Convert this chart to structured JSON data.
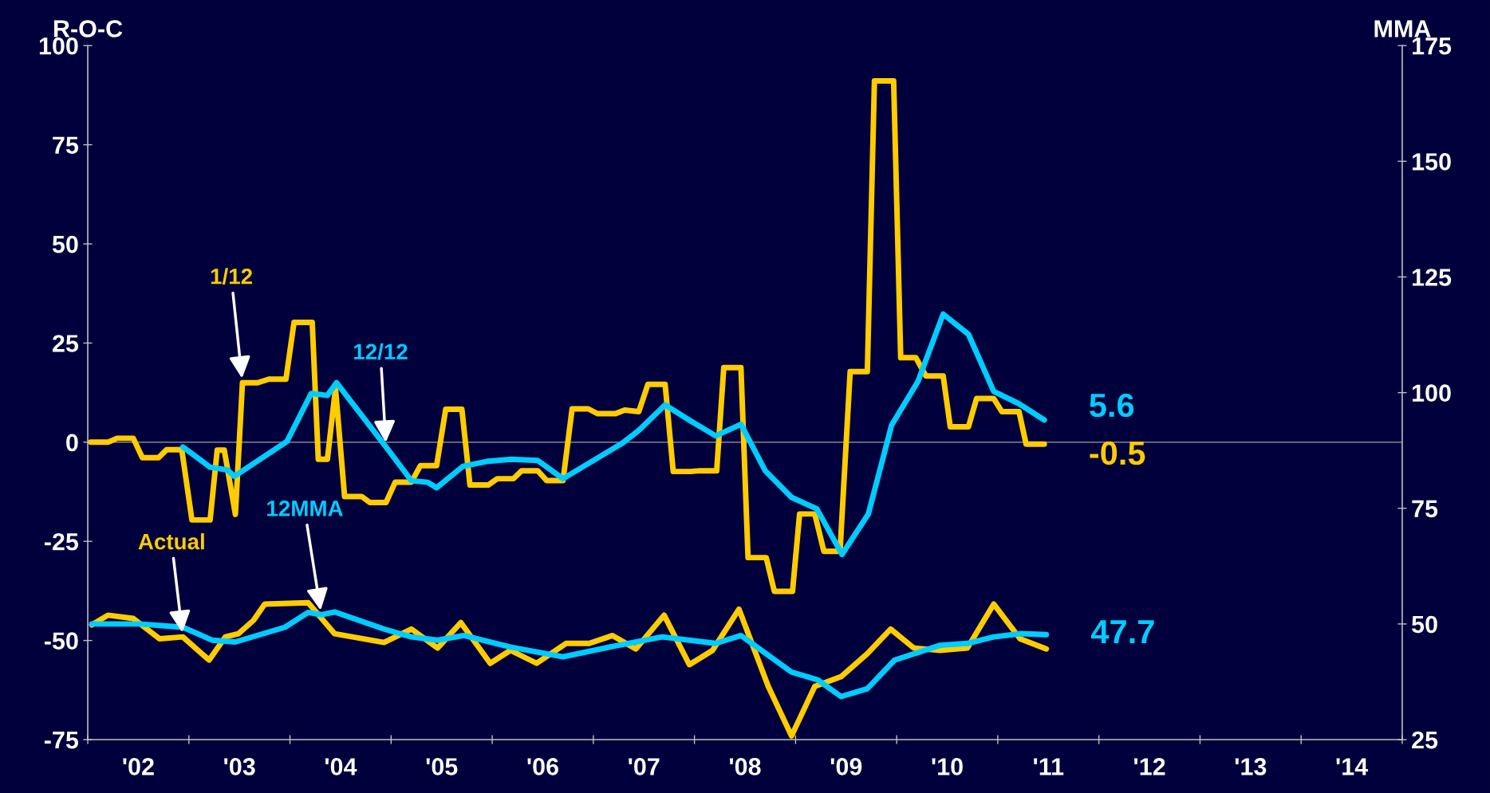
{
  "chart_data": {
    "type": "line",
    "ylabel": "R-O-C",
    "y2label": "MMA",
    "xlim": [
      2001.5,
      2014.5
    ],
    "xticks": [
      {
        "value": 2001.5,
        "label": null
      },
      {
        "value": 2002,
        "label": "'02"
      },
      {
        "value": 2002.5,
        "label": null
      },
      {
        "value": 2003,
        "label": "'03"
      },
      {
        "value": 2003.5,
        "label": null
      },
      {
        "value": 2004,
        "label": "'04"
      },
      {
        "value": 2004.5,
        "label": null
      },
      {
        "value": 2005,
        "label": "'05"
      },
      {
        "value": 2005.5,
        "label": null
      },
      {
        "value": 2006,
        "label": "'06"
      },
      {
        "value": 2006.5,
        "label": null
      },
      {
        "value": 2007,
        "label": "'07"
      },
      {
        "value": 2007.5,
        "label": null
      },
      {
        "value": 2008,
        "label": "'08"
      },
      {
        "value": 2008.5,
        "label": null
      },
      {
        "value": 2009,
        "label": "'09"
      },
      {
        "value": 2009.5,
        "label": null
      },
      {
        "value": 2010,
        "label": "'10"
      },
      {
        "value": 2010.5,
        "label": null
      },
      {
        "value": 2011,
        "label": "'11"
      },
      {
        "value": 2011.5,
        "label": null
      },
      {
        "value": 2012,
        "label": "'12"
      },
      {
        "value": 2012.5,
        "label": null
      },
      {
        "value": 2013,
        "label": "'13"
      },
      {
        "value": 2013.5,
        "label": null
      },
      {
        "value": 2014,
        "label": "'14"
      },
      {
        "value": 2014.5,
        "label": null
      }
    ],
    "ylim": [
      -75,
      100
    ],
    "yticks": [
      -75,
      -50,
      -25,
      0,
      25,
      50,
      75,
      100
    ],
    "y2lim": [
      25,
      175
    ],
    "y2ticks": [
      25,
      50,
      75,
      100,
      125,
      150,
      175
    ],
    "grid": false,
    "marker": "none",
    "line_style": "solid",
    "ref_lines": [
      {
        "axis": "y",
        "value": 0,
        "color": "#a0a0a0"
      }
    ],
    "series": [
      {
        "name": "1/12",
        "color": "#ffcc00",
        "x": [
          2001.53,
          2001.7,
          2001.79,
          2001.95,
          2002.04,
          2002.2,
          2002.28,
          2002.43,
          2002.53,
          2002.71,
          2002.78,
          2002.85,
          2002.96,
          2003.03,
          2003.18,
          2003.29,
          2003.46,
          2003.54,
          2003.72,
          2003.78,
          2003.87,
          2003.95,
          2004.04,
          2004.21,
          2004.29,
          2004.45,
          2004.54,
          2004.7,
          2004.79,
          2004.95,
          2005.04,
          2005.2,
          2005.28,
          2005.46,
          2005.55,
          2005.71,
          2005.79,
          2005.95,
          2006.04,
          2006.2,
          2006.29,
          2006.45,
          2006.54,
          2006.72,
          2006.81,
          2006.95,
          2007.04,
          2007.21,
          2007.29,
          2007.46,
          2007.55,
          2007.72,
          2007.79,
          2007.96,
          2008.03,
          2008.21,
          2008.29,
          2008.47,
          2008.54,
          2008.69,
          2008.78,
          2008.94,
          2009.04,
          2009.21,
          2009.28,
          2009.47,
          2009.54,
          2009.69,
          2009.79,
          2009.96,
          2010.03,
          2010.21,
          2010.29,
          2010.46,
          2010.54,
          2010.71,
          2010.78,
          2010.96
        ],
        "values": [
          0,
          0,
          1,
          1,
          -3.9,
          -3.9,
          -1.9,
          -1.9,
          -19.6,
          -19.6,
          -2,
          -2,
          -18.2,
          15,
          15,
          15.9,
          15.9,
          30.2,
          30.2,
          -4.3,
          -4.3,
          13.6,
          -13.7,
          -13.7,
          -15.2,
          -15.2,
          -10.1,
          -10.1,
          -5.9,
          -5.9,
          8.3,
          8.3,
          -10.8,
          -10.8,
          -9.2,
          -9.2,
          -7.2,
          -7.2,
          -9.7,
          -9.7,
          8.4,
          8.4,
          7.2,
          7.2,
          8.1,
          7.7,
          14.6,
          14.6,
          -7.4,
          -7.4,
          -7.2,
          -7.2,
          18.8,
          18.8,
          -29.1,
          -29.1,
          -37.6,
          -37.6,
          -18.1,
          -18.1,
          -27.5,
          -27.5,
          17.8,
          17.8,
          91.1,
          91.1,
          21.3,
          21.3,
          16.7,
          16.7,
          3.9,
          3.9,
          11,
          11,
          7.7,
          7.7,
          -0.5,
          -0.5
        ],
        "value_labels": [
          null,
          null,
          null,
          null,
          null,
          null,
          null,
          null,
          null,
          null,
          null,
          null,
          null,
          null,
          null,
          null,
          null,
          null,
          null,
          null,
          null,
          null,
          null,
          null,
          null,
          null,
          null,
          null,
          null,
          null,
          null,
          null,
          null,
          null,
          null,
          null,
          null,
          null,
          null,
          null,
          null,
          null,
          null,
          null,
          null,
          null,
          null,
          null,
          null,
          null,
          null,
          null,
          null,
          null,
          null,
          null,
          null,
          null,
          null,
          null,
          null,
          null,
          null,
          null,
          null,
          null,
          null,
          null,
          null,
          null,
          null,
          null,
          null,
          null,
          null,
          null,
          null,
          "-0.5"
        ]
      },
      {
        "name": "12/12",
        "color": "#00ccff",
        "x": [
          2002.44,
          2002.71,
          2002.88,
          2002.95,
          2003.47,
          2003.71,
          2003.87,
          2003.96,
          2004.45,
          2004.7,
          2004.86,
          2004.95,
          2005.21,
          2005.46,
          2005.69,
          2005.95,
          2006.2,
          2006.79,
          2006.95,
          2007.21,
          2007.46,
          2007.71,
          2007.96,
          2008.2,
          2008.46,
          2008.71,
          2008.96,
          2009.22,
          2009.45,
          2009.71,
          2009.96,
          2010.21,
          2010.46,
          2010.71,
          2010.96
        ],
        "values": [
          -1.2,
          -6.3,
          -7,
          -8.6,
          0.2,
          12.3,
          11.8,
          15,
          -1.2,
          -9.7,
          -10.1,
          -11.5,
          -6.1,
          -4.8,
          -4.3,
          -4.6,
          -9.2,
          -0.2,
          3,
          9.4,
          5.4,
          1.6,
          4.5,
          -7.2,
          -13.9,
          -16.8,
          -28.3,
          -18.1,
          4.3,
          15.3,
          32.3,
          27.2,
          12.8,
          9.7,
          5.6
        ],
        "value_labels": [
          null,
          null,
          null,
          null,
          null,
          null,
          null,
          null,
          null,
          null,
          null,
          null,
          null,
          null,
          null,
          null,
          null,
          null,
          null,
          null,
          null,
          null,
          null,
          null,
          null,
          null,
          null,
          null,
          null,
          null,
          null,
          null,
          null,
          null,
          "5.6"
        ]
      },
      {
        "name": "Actual",
        "color": "#ffcc00",
        "axis": "y2",
        "x": [
          2001.54,
          2001.7,
          2001.95,
          2002.21,
          2002.44,
          2002.7,
          2002.86,
          2002.99,
          2003.14,
          2003.25,
          2003.68,
          2003.94,
          2004.43,
          2004.7,
          2004.96,
          2005.19,
          2005.48,
          2005.68,
          2005.94,
          2006.23,
          2006.46,
          2006.69,
          2006.92,
          2007.2,
          2007.45,
          2007.68,
          2007.94,
          2008.23,
          2008.46,
          2008.69,
          2008.95,
          2009.21,
          2009.44,
          2009.67,
          2009.93,
          2010.2,
          2010.46,
          2010.72,
          2010.98
        ],
        "values": [
          49.8,
          51.9,
          51.2,
          46.8,
          47.2,
          42.2,
          47.2,
          47.9,
          50.8,
          54.3,
          54.6,
          47.9,
          46,
          48.9,
          44.8,
          50.3,
          41.5,
          44.3,
          41.5,
          45.8,
          45.8,
          47.5,
          44.6,
          51.9,
          41.2,
          44.3,
          53.2,
          36.5,
          25.8,
          36.5,
          38.6,
          43.6,
          48.9,
          44.8,
          44.3,
          44.8,
          54.3,
          46.8,
          44.6
        ]
      },
      {
        "name": "12MMA",
        "color": "#00ccff",
        "axis": "y2",
        "x": [
          2001.54,
          2002.01,
          2002.44,
          2002.73,
          2002.96,
          2003.45,
          2003.68,
          2003.81,
          2003.94,
          2004.43,
          2004.7,
          2004.96,
          2005.22,
          2005.68,
          2006.2,
          2006.66,
          2007.18,
          2007.71,
          2007.96,
          2008.46,
          2008.72,
          2008.95,
          2009.21,
          2009.48,
          2009.93,
          2010.2,
          2010.46,
          2010.72,
          2010.98
        ],
        "values": [
          50,
          50,
          49.3,
          46.5,
          46.1,
          49.3,
          52.5,
          52,
          52.6,
          48.9,
          47.2,
          46.5,
          47.5,
          45,
          42.9,
          45,
          47.2,
          45.8,
          47.5,
          39.6,
          37.9,
          34.3,
          36,
          42.2,
          45.4,
          45.8,
          47.2,
          47.9,
          47.7
        ],
        "value_labels": [
          null,
          null,
          null,
          null,
          null,
          null,
          null,
          null,
          null,
          null,
          null,
          null,
          null,
          null,
          null,
          null,
          null,
          null,
          null,
          null,
          null,
          null,
          null,
          null,
          null,
          null,
          null,
          null,
          "47.7"
        ]
      }
    ]
  }
}
